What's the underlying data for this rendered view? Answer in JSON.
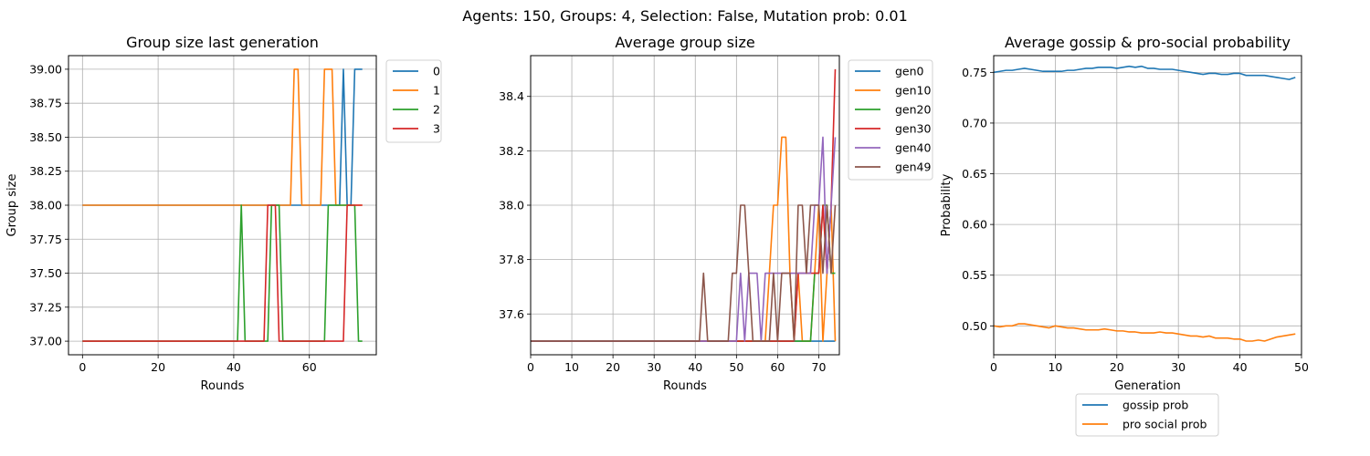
{
  "suptitle": "Agents: 150, Groups: 4, Selection: False, Mutation prob: 0.01",
  "colors": {
    "blue": "#1f77b4",
    "orange": "#ff7f0e",
    "green": "#2ca02c",
    "red": "#d62728",
    "purple": "#9467bd",
    "brown": "#8c564b"
  },
  "chart_data": [
    {
      "type": "line",
      "title": "Group size last generation",
      "xlabel": "Rounds",
      "ylabel": "Group size",
      "xlim": [
        -3.7,
        77.7
      ],
      "ylim": [
        36.9,
        39.1
      ],
      "xticks": [
        0,
        20,
        40,
        60
      ],
      "xtick_labels": [
        "0",
        "20",
        "40",
        "60"
      ],
      "yticks": [
        37.0,
        37.25,
        37.5,
        37.75,
        38.0,
        38.25,
        38.5,
        38.75,
        39.0
      ],
      "ytick_labels": [
        "37.00",
        "37.25",
        "37.50",
        "37.75",
        "38.00",
        "38.25",
        "38.50",
        "38.75",
        "39.00"
      ],
      "grid": true,
      "legend_placement": "outside-top-right",
      "series": [
        {
          "name": "0",
          "color": "blue",
          "segments": [
            [
              0,
              38
            ],
            [
              67,
              38
            ],
            [
              68,
              38
            ],
            [
              69,
              39
            ],
            [
              70,
              38
            ],
            [
              71,
              38
            ],
            [
              72,
              39
            ],
            [
              74,
              39
            ]
          ]
        },
        {
          "name": "1",
          "color": "orange",
          "segments": [
            [
              0,
              38
            ],
            [
              55,
              38
            ],
            [
              56,
              39
            ],
            [
              57,
              39
            ],
            [
              58,
              38
            ],
            [
              63,
              38
            ],
            [
              64,
              39
            ],
            [
              66,
              39
            ],
            [
              67,
              38
            ],
            [
              74,
              38
            ]
          ]
        },
        {
          "name": "2",
          "color": "green",
          "segments": [
            [
              0,
              37
            ],
            [
              41,
              37
            ],
            [
              42,
              38
            ],
            [
              43,
              37
            ],
            [
              49,
              37
            ],
            [
              50,
              38
            ],
            [
              52,
              38
            ],
            [
              53,
              37
            ],
            [
              64,
              37
            ],
            [
              65,
              38
            ],
            [
              72,
              38
            ],
            [
              73,
              37
            ],
            [
              74,
              37
            ]
          ]
        },
        {
          "name": "3",
          "color": "red",
          "segments": [
            [
              0,
              37
            ],
            [
              48,
              37
            ],
            [
              49,
              38
            ],
            [
              51,
              38
            ],
            [
              52,
              37
            ],
            [
              69,
              37
            ],
            [
              70,
              38
            ],
            [
              74,
              38
            ]
          ]
        }
      ]
    },
    {
      "type": "line",
      "title": "Average group size",
      "xlabel": "Rounds",
      "ylabel": "",
      "xlim": [
        0,
        75
      ],
      "ylim": [
        37.45,
        38.55
      ],
      "xticks": [
        0,
        10,
        20,
        30,
        40,
        50,
        60,
        70
      ],
      "xtick_labels": [
        "0",
        "10",
        "20",
        "30",
        "40",
        "50",
        "60",
        "70"
      ],
      "yticks": [
        37.6,
        37.8,
        38.0,
        38.2,
        38.4
      ],
      "ytick_labels": [
        "37.6",
        "37.8",
        "38.0",
        "38.2",
        "38.4"
      ],
      "grid": true,
      "legend_placement": "outside-top-right",
      "series": [
        {
          "name": "gen0",
          "color": "blue",
          "segments": [
            [
              0,
              37.5
            ],
            [
              74,
              37.5
            ]
          ]
        },
        {
          "name": "gen10",
          "color": "orange",
          "segments": [
            [
              0,
              37.5
            ],
            [
              57,
              37.5
            ],
            [
              58,
              37.75
            ],
            [
              59,
              38.0
            ],
            [
              60,
              38.0
            ],
            [
              61,
              38.25
            ],
            [
              62,
              38.25
            ],
            [
              63,
              37.75
            ],
            [
              64,
              37.5
            ],
            [
              65,
              37.75
            ],
            [
              66,
              37.5
            ],
            [
              68,
              37.5
            ],
            [
              69,
              37.75
            ],
            [
              70,
              38.0
            ],
            [
              71,
              37.5
            ],
            [
              72,
              37.75
            ],
            [
              73,
              38.0
            ],
            [
              74,
              37.5
            ]
          ]
        },
        {
          "name": "gen20",
          "color": "green",
          "segments": [
            [
              0,
              37.5
            ],
            [
              68,
              37.5
            ],
            [
              69,
              37.75
            ],
            [
              70,
              37.75
            ],
            [
              71,
              38.0
            ],
            [
              72,
              38.0
            ],
            [
              73,
              37.75
            ],
            [
              74,
              37.75
            ]
          ]
        },
        {
          "name": "gen30",
          "color": "red",
          "segments": [
            [
              0,
              37.5
            ],
            [
              64,
              37.5
            ],
            [
              65,
              37.75
            ],
            [
              70,
              37.75
            ],
            [
              71,
              38.0
            ],
            [
              72,
              37.75
            ],
            [
              73,
              38.0
            ],
            [
              74,
              38.5
            ]
          ]
        },
        {
          "name": "gen40",
          "color": "purple",
          "segments": [
            [
              0,
              37.5
            ],
            [
              50,
              37.5
            ],
            [
              51,
              37.75
            ],
            [
              52,
              37.5
            ],
            [
              53,
              37.75
            ],
            [
              55,
              37.75
            ],
            [
              56,
              37.5
            ],
            [
              57,
              37.75
            ],
            [
              68,
              37.75
            ],
            [
              69,
              38.0
            ],
            [
              70,
              38.0
            ],
            [
              71,
              38.25
            ],
            [
              72,
              37.75
            ],
            [
              73,
              38.0
            ],
            [
              74,
              38.25
            ]
          ]
        },
        {
          "name": "gen49",
          "color": "brown",
          "segments": [
            [
              0,
              37.5
            ],
            [
              41,
              37.5
            ],
            [
              42,
              37.75
            ],
            [
              43,
              37.5
            ],
            [
              48,
              37.5
            ],
            [
              49,
              37.75
            ],
            [
              50,
              37.75
            ],
            [
              51,
              38.0
            ],
            [
              52,
              38.0
            ],
            [
              53,
              37.75
            ],
            [
              54,
              37.5
            ],
            [
              58,
              37.5
            ],
            [
              59,
              37.75
            ],
            [
              60,
              37.5
            ],
            [
              61,
              37.75
            ],
            [
              63,
              37.75
            ],
            [
              64,
              37.5
            ],
            [
              65,
              38.0
            ],
            [
              66,
              38.0
            ],
            [
              67,
              37.75
            ],
            [
              68,
              38.0
            ],
            [
              70,
              38.0
            ],
            [
              71,
              37.75
            ],
            [
              72,
              38.0
            ],
            [
              73,
              37.75
            ],
            [
              74,
              38.0
            ]
          ]
        }
      ]
    },
    {
      "type": "line",
      "title": "Average gossip & pro-social probability",
      "xlabel": "Generation",
      "ylabel": "Probability",
      "xlim": [
        0,
        50
      ],
      "ylim": [
        0.4715,
        0.7665
      ],
      "xticks": [
        0,
        10,
        20,
        30,
        40,
        50
      ],
      "xtick_labels": [
        "0",
        "10",
        "20",
        "30",
        "40",
        "50"
      ],
      "yticks": [
        0.5,
        0.55,
        0.6,
        0.65,
        0.7,
        0.75
      ],
      "ytick_labels": [
        "0.50",
        "0.55",
        "0.60",
        "0.65",
        "0.70",
        "0.75"
      ],
      "grid": true,
      "legend_placement": "below",
      "series": [
        {
          "name": "gossip prob",
          "color": "blue",
          "x_start": 0,
          "values": [
            0.75,
            0.751,
            0.752,
            0.752,
            0.753,
            0.754,
            0.753,
            0.752,
            0.751,
            0.751,
            0.751,
            0.751,
            0.752,
            0.752,
            0.753,
            0.754,
            0.754,
            0.755,
            0.755,
            0.755,
            0.754,
            0.755,
            0.756,
            0.755,
            0.756,
            0.754,
            0.754,
            0.753,
            0.753,
            0.753,
            0.752,
            0.751,
            0.75,
            0.749,
            0.748,
            0.749,
            0.749,
            0.748,
            0.748,
            0.749,
            0.749,
            0.747,
            0.747,
            0.747,
            0.747,
            0.746,
            0.745,
            0.744,
            0.743,
            0.745
          ]
        },
        {
          "name": "pro social prob",
          "color": "orange",
          "x_start": 0,
          "values": [
            0.5,
            0.499,
            0.5,
            0.5,
            0.502,
            0.502,
            0.501,
            0.5,
            0.499,
            0.498,
            0.5,
            0.499,
            0.498,
            0.498,
            0.497,
            0.496,
            0.496,
            0.496,
            0.497,
            0.496,
            0.495,
            0.495,
            0.494,
            0.494,
            0.493,
            0.493,
            0.493,
            0.494,
            0.493,
            0.493,
            0.492,
            0.491,
            0.49,
            0.49,
            0.489,
            0.49,
            0.488,
            0.488,
            0.488,
            0.487,
            0.487,
            0.485,
            0.485,
            0.486,
            0.485,
            0.487,
            0.489,
            0.49,
            0.491,
            0.492
          ]
        }
      ]
    }
  ]
}
